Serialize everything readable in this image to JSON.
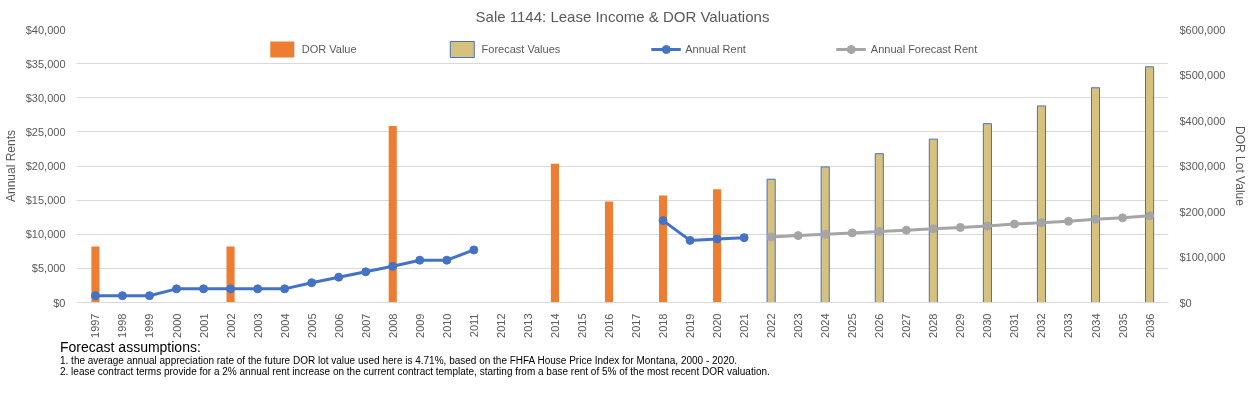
{
  "chart_data": {
    "type": "bar",
    "title": "Sale 1144: Lease Income & DOR Valuations",
    "categories": [
      "1997",
      "1998",
      "1999",
      "2000",
      "2001",
      "2002",
      "2003",
      "2004",
      "2005",
      "2006",
      "2007",
      "2008",
      "2009",
      "2010",
      "2011",
      "2012",
      "2013",
      "2014",
      "2015",
      "2016",
      "2017",
      "2018",
      "2019",
      "2020",
      "2021",
      "2022",
      "2023",
      "2024",
      "2025",
      "2026",
      "2027",
      "2028",
      "2029",
      "2030",
      "2031",
      "2032",
      "2033",
      "2034",
      "2035",
      "2036"
    ],
    "series": [
      {
        "name": "DOR Value",
        "axis": "y2",
        "color": "#ed7d31",
        "values": [
          123000,
          null,
          null,
          null,
          null,
          123000,
          null,
          null,
          null,
          null,
          null,
          388000,
          null,
          null,
          null,
          null,
          null,
          305000,
          null,
          222000,
          null,
          235000,
          null,
          249000,
          null,
          null,
          null,
          null,
          null,
          null,
          null,
          null,
          null,
          null,
          null,
          null,
          null,
          null,
          null,
          null
        ]
      },
      {
        "name": "Forecast Values",
        "axis": "y2",
        "color": "#d6c27e",
        "values": [
          null,
          null,
          null,
          null,
          null,
          null,
          null,
          null,
          null,
          null,
          null,
          null,
          null,
          null,
          null,
          null,
          null,
          null,
          null,
          null,
          null,
          null,
          null,
          null,
          null,
          271000,
          null,
          298000,
          null,
          327000,
          null,
          359000,
          null,
          393000,
          null,
          432000,
          null,
          472000,
          null,
          518000
        ]
      },
      {
        "name": "Annual Rent",
        "type": "line",
        "color": "#4472c4",
        "values": [
          1000,
          1000,
          1000,
          2000,
          2000,
          2000,
          2000,
          2000,
          2900,
          3700,
          4500,
          5300,
          6200,
          6200,
          7700,
          null,
          null,
          null,
          null,
          null,
          null,
          12000,
          9100,
          9300,
          9500,
          null,
          null,
          null,
          null,
          null,
          null,
          null,
          null,
          null,
          null,
          null,
          null,
          null,
          null,
          null
        ]
      },
      {
        "name": "Annual Forecast Rent",
        "type": "line",
        "color": "#a5a5a5",
        "values": [
          null,
          null,
          null,
          null,
          null,
          null,
          null,
          null,
          null,
          null,
          null,
          null,
          null,
          null,
          null,
          null,
          null,
          null,
          null,
          null,
          null,
          null,
          null,
          null,
          null,
          9600,
          9800,
          10000,
          10200,
          10400,
          10600,
          10800,
          11000,
          11200,
          11500,
          11700,
          11900,
          12200,
          12400,
          12700
        ]
      }
    ],
    "ylabel": "Annual Rents",
    "y2label": "DOR Lot Value",
    "ylim": [
      0,
      40000
    ],
    "yticks": [
      {
        "value": 0,
        "label": "$0"
      },
      {
        "value": 5000,
        "label": "$5,000"
      },
      {
        "value": 10000,
        "label": "$10,000"
      },
      {
        "value": 15000,
        "label": "$15,000"
      },
      {
        "value": 20000,
        "label": "$20,000"
      },
      {
        "value": 25000,
        "label": "$25,000"
      },
      {
        "value": 30000,
        "label": "$30,000"
      },
      {
        "value": 35000,
        "label": "$35,000"
      },
      {
        "value": 40000,
        "label": "$40,000"
      }
    ],
    "y2lim": [
      0,
      600000
    ],
    "y2ticks": [
      {
        "value": 0,
        "label": "$0"
      },
      {
        "value": 100000,
        "label": "$100,000"
      },
      {
        "value": 200000,
        "label": "$200,000"
      },
      {
        "value": 300000,
        "label": "$300,000"
      },
      {
        "value": 400000,
        "label": "$400,000"
      },
      {
        "value": 500000,
        "label": "$500,000"
      },
      {
        "value": 600000,
        "label": "$600,000"
      }
    ],
    "grid": "y",
    "legend": "top",
    "marker": "circle",
    "line_style": "solid",
    "annotations": [
      "Forecast assumptions:",
      "1.  the average annual appreciation rate of the future DOR lot value used here is 4.71%, based on the FHFA House Price Index for Montana, 2000 - 2020.",
      "2.  lease contract terms provide for a 2% annual rent increase on the current contract template, starting from a base rent of 5% of the most recent DOR valuation."
    ]
  }
}
